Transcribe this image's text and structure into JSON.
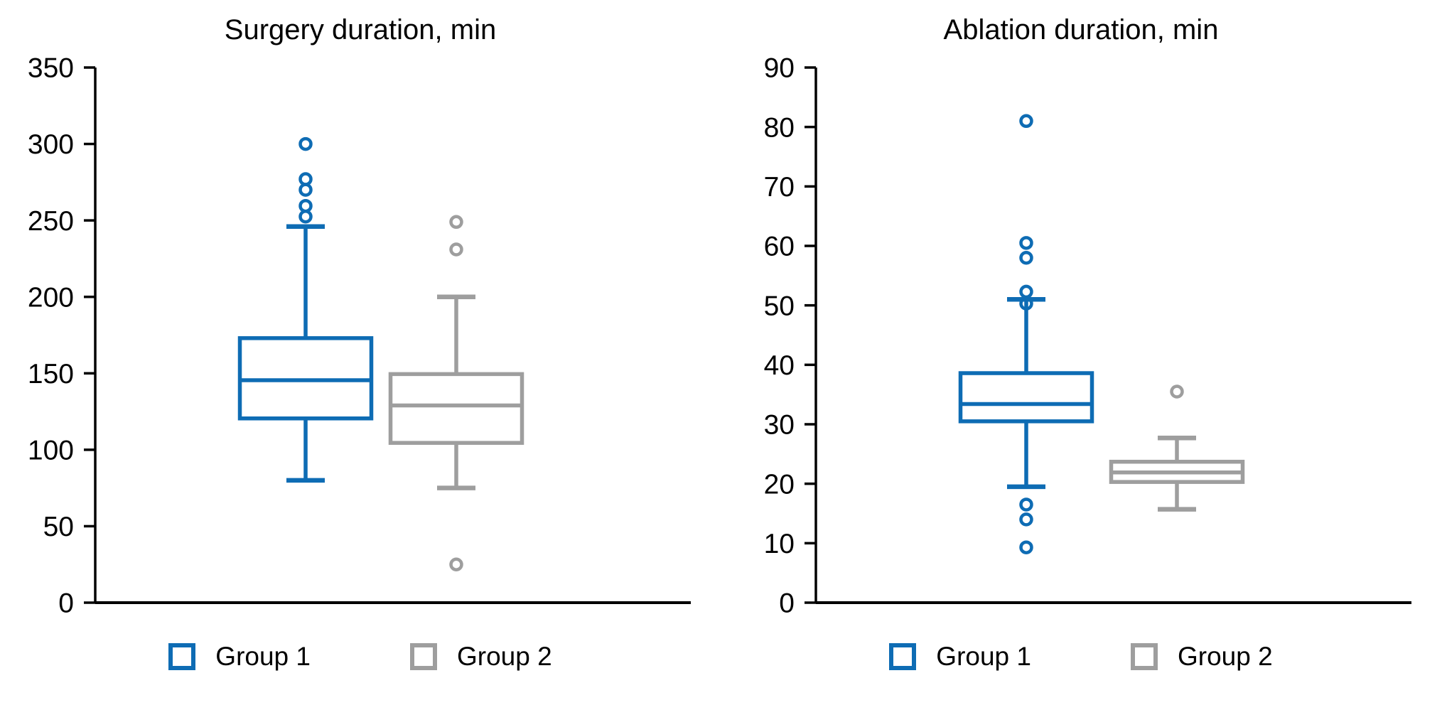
{
  "colors": {
    "group1": "#0e6cb4",
    "group2": "#9e9e9e",
    "axis": "#000000",
    "background": "#ffffff"
  },
  "legend": {
    "group1_label": "Group 1",
    "group2_label": "Group 2"
  },
  "chart_data": [
    {
      "type": "boxplot",
      "title": "Surgery duration, min",
      "ylim": [
        0,
        350
      ],
      "yticks": [
        0,
        50,
        100,
        150,
        200,
        250,
        300,
        350
      ],
      "grid": false,
      "legend_position": "bottom",
      "categories": [
        "Group 1",
        "Group 2"
      ],
      "series": [
        {
          "name": "Group 1",
          "color_key": "group1",
          "whisker_low": 80,
          "q1": 120.5,
          "median": 145.5,
          "q3": 173,
          "whisker_high": 246,
          "outliers": [
            252.5,
            259.5,
            270,
            277,
            300
          ]
        },
        {
          "name": "Group 2",
          "color_key": "group2",
          "whisker_low": 75,
          "q1": 104.5,
          "median": 129,
          "q3": 149.5,
          "whisker_high": 200,
          "outliers": [
            25,
            231,
            249
          ]
        }
      ]
    },
    {
      "type": "boxplot",
      "title": "Ablation duration, min",
      "ylim": [
        0,
        90
      ],
      "yticks": [
        0,
        10,
        20,
        30,
        40,
        50,
        60,
        70,
        80,
        90
      ],
      "grid": false,
      "legend_position": "bottom",
      "categories": [
        "Group 1",
        "Group 2"
      ],
      "series": [
        {
          "name": "Group 1",
          "color_key": "group1",
          "whisker_low": 19.5,
          "q1": 30.5,
          "median": 33.4,
          "q3": 38.6,
          "whisker_high": 51,
          "outliers": [
            9.3,
            14,
            16.5,
            50.3,
            52.3,
            58,
            60.5,
            81
          ]
        },
        {
          "name": "Group 2",
          "color_key": "group2",
          "whisker_low": 15.7,
          "q1": 20.3,
          "median": 21.9,
          "q3": 23.7,
          "whisker_high": 27.7,
          "outliers": [
            35.5
          ]
        }
      ]
    }
  ]
}
